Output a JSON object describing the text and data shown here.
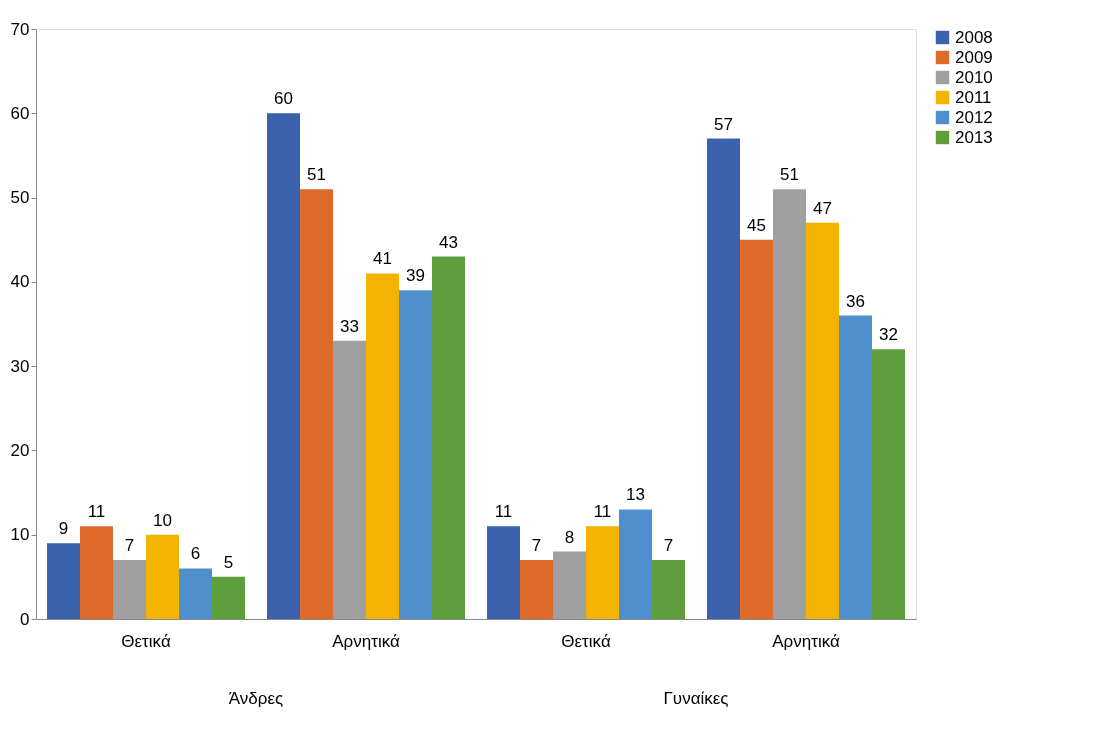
{
  "chart_data": {
    "type": "bar",
    "categories": [
      "Θετικά",
      "Αρνητικά",
      "Θετικά",
      "Αρνητικά"
    ],
    "annotations": [
      "Άνδρες",
      "Γυναίκες"
    ],
    "series": [
      {
        "name": "2008",
        "color": "#3a62ad",
        "values": [
          9,
          60,
          11,
          57
        ]
      },
      {
        "name": "2009",
        "color": "#de6b2b",
        "values": [
          11,
          51,
          7,
          45
        ]
      },
      {
        "name": "2010",
        "color": "#a0a0a0",
        "values": [
          7,
          33,
          8,
          51
        ]
      },
      {
        "name": "2011",
        "color": "#f2b400",
        "values": [
          10,
          41,
          11,
          47
        ]
      },
      {
        "name": "2012",
        "color": "#4f8fcd",
        "values": [
          6,
          39,
          13,
          36
        ]
      },
      {
        "name": "2013",
        "color": "#5f9e3d",
        "values": [
          5,
          43,
          7,
          32
        ]
      }
    ],
    "ylim": [
      0,
      70
    ],
    "yticks": [
      0,
      10,
      20,
      30,
      40,
      50,
      60,
      70
    ],
    "grid": false,
    "legend": "right",
    "data_labels": true
  }
}
